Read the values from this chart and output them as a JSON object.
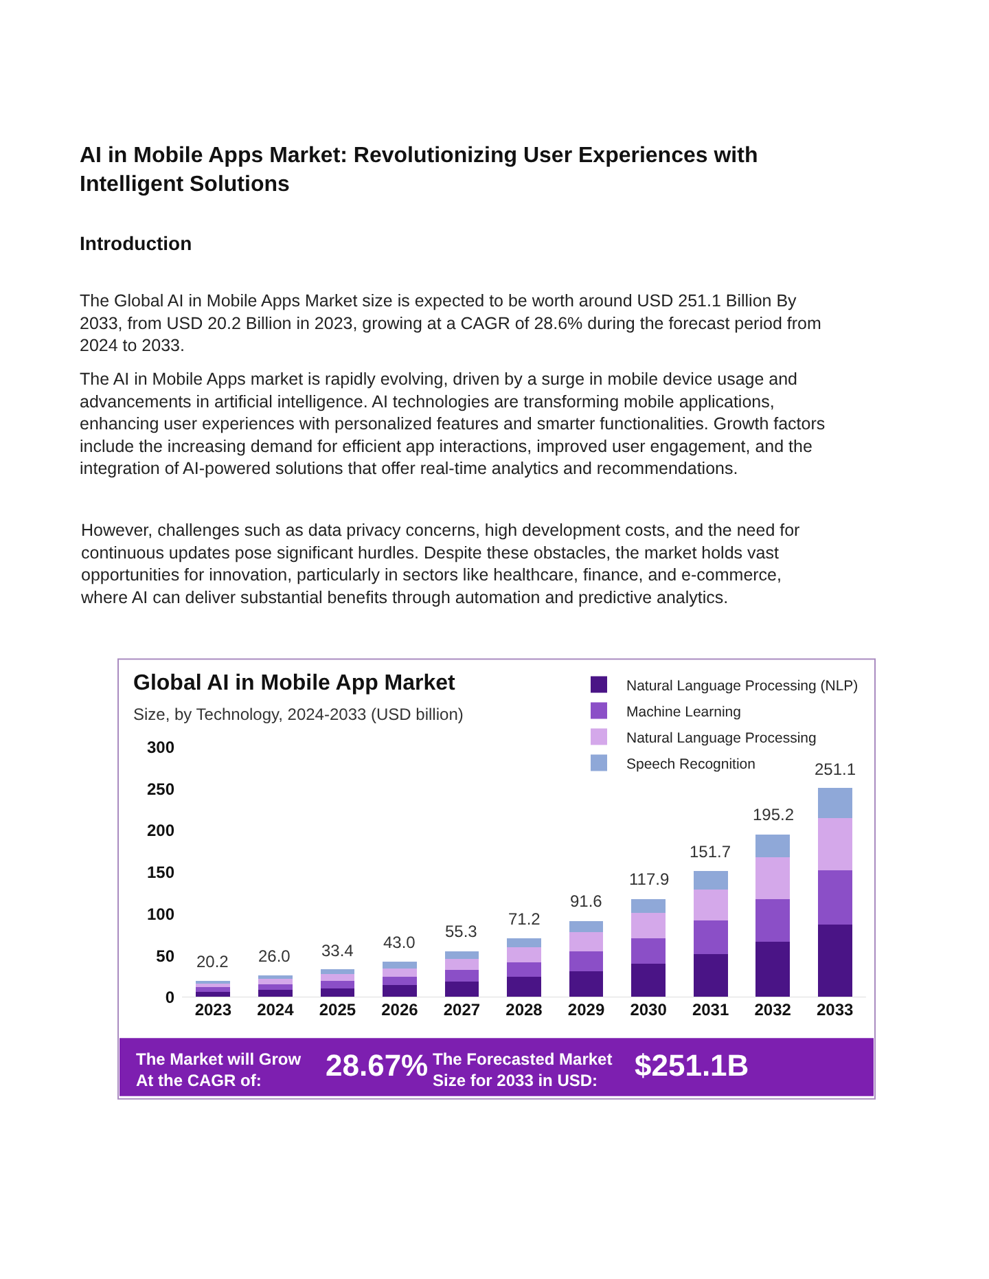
{
  "chart_data": {
    "type": "bar",
    "stacked": true,
    "title": "Global AI in Mobile App Market",
    "subtitle": "Size, by Technology, 2024-2033 (USD billion)",
    "categories": [
      "2023",
      "2024",
      "2025",
      "2026",
      "2027",
      "2028",
      "2029",
      "2030",
      "2031",
      "2032",
      "2033"
    ],
    "series": [
      {
        "name": "Natural Language Processing (NLP)",
        "color": "#4a1486",
        "values": [
          7,
          9,
          11,
          15,
          19,
          25,
          31,
          40,
          52,
          67,
          87
        ]
      },
      {
        "name": "Machine Learning",
        "color": "#8b4fc7",
        "values": [
          5,
          7,
          9,
          10,
          14,
          17,
          24,
          31,
          40,
          51,
          65
        ]
      },
      {
        "name": "Natural Language Processing",
        "color": "#d4a8ea",
        "values": [
          5,
          6,
          8,
          10,
          13,
          18,
          23,
          30,
          37,
          50,
          63
        ]
      },
      {
        "name": "Speech Recognition",
        "color": "#8fa8d8",
        "values": [
          3.2,
          4,
          5.4,
          8,
          9.3,
          11.2,
          13.6,
          16.9,
          22.7,
          27.2,
          36.1
        ]
      }
    ],
    "totals": [
      "20.2",
      "26.0",
      "33.4",
      "43.0",
      "55.3",
      "71.2",
      "91.6",
      "117.9",
      "151.7",
      "195.2",
      "251.1"
    ],
    "ylim": [
      0,
      300
    ],
    "yticks": [
      0,
      50,
      100,
      150,
      200,
      250,
      300
    ],
    "legend": "top right",
    "annotations": [
      "AI in Mobile Apps Market: Revolutionizing User Experiences with Intelligent Solutions",
      "Introduction",
      "The Global AI in Mobile Apps Market size is expected to be worth around USD 251.1 Billion By 2033, from USD 20.2 Billion in 2023, growing at a CAGR of 28.6% during the forecast period from 2024 to 2033.",
      "The AI in Mobile Apps market is rapidly evolving, driven by a surge in mobile device usage and advancements in artificial intelligence. AI technologies are transforming mobile applications, enhancing user experiences with personalized features and smarter functionalities. Growth factors include the increasing demand for efficient app interactions, improved user engagement, and the integration of AI-powered solutions that offer real-time analytics and recommendations.",
      "However, challenges such as data privacy concerns, high development costs, and the need for continuous updates pose significant hurdles. Despite these obstacles, the market holds vast opportunities for innovation, particularly in sectors like healthcare, finance, and e-commerce, where AI can deliver substantial benefits through automation and predictive analytics.",
      "The Market will Grow At the CAGR of:",
      "28.67%",
      "The Forecasted Market Size for 2033 in USD:",
      "$251.1B"
    ]
  }
}
